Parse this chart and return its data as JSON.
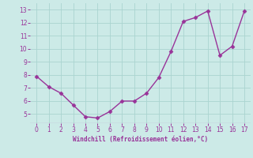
{
  "x": [
    0,
    1,
    2,
    3,
    4,
    5,
    6,
    7,
    8,
    9,
    10,
    11,
    12,
    13,
    14,
    15,
    16,
    17
  ],
  "y": [
    7.9,
    7.1,
    6.6,
    5.7,
    4.8,
    4.7,
    5.2,
    6.0,
    6.0,
    6.6,
    7.8,
    9.8,
    12.1,
    12.4,
    12.9,
    9.5,
    10.2,
    12.9
  ],
  "line_color": "#993399",
  "marker": "D",
  "marker_size": 2.5,
  "xlabel": "Windchill (Refroidissement éolien,°C)",
  "xlim": [
    -0.5,
    17.5
  ],
  "ylim": [
    4.3,
    13.5
  ],
  "yticks": [
    5,
    6,
    7,
    8,
    9,
    10,
    11,
    12,
    13
  ],
  "xticks": [
    0,
    1,
    2,
    3,
    4,
    5,
    6,
    7,
    8,
    9,
    10,
    11,
    12,
    13,
    14,
    15,
    16,
    17
  ],
  "background_color": "#cceae7",
  "grid_color": "#aad4d0",
  "xlabel_color": "#993399",
  "tick_color": "#993399",
  "line_width": 1.0
}
